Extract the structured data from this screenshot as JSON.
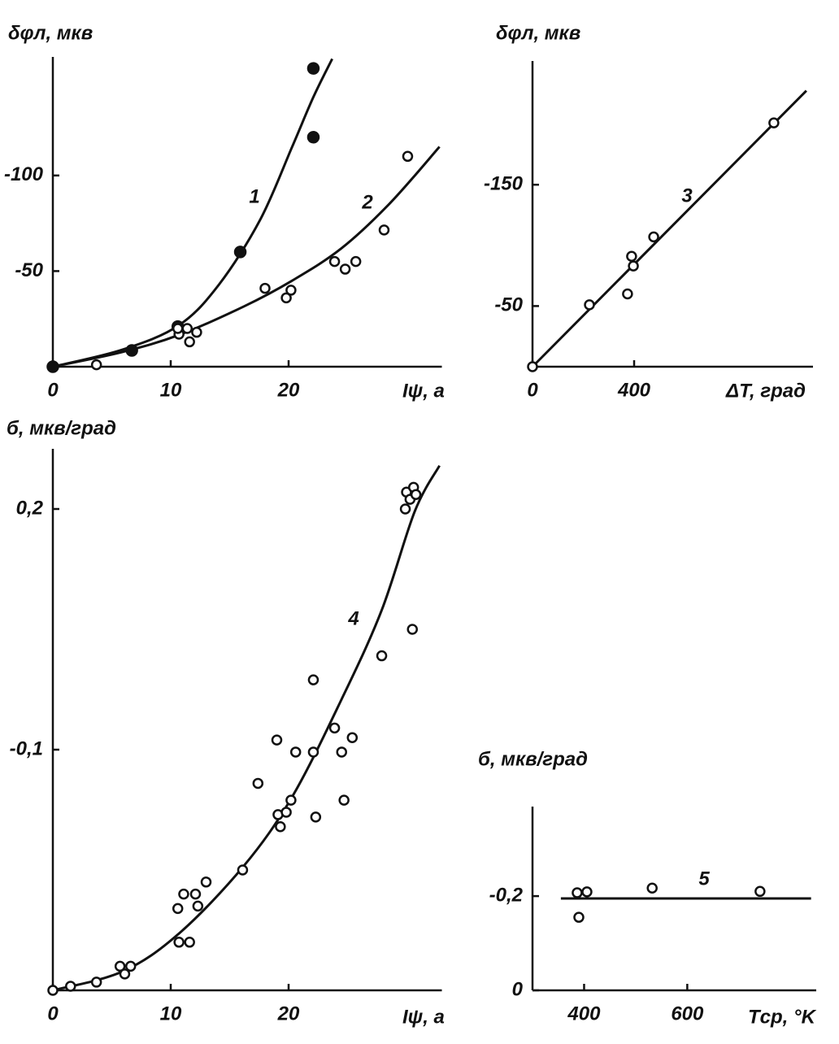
{
  "chart_data": [
    {
      "type": "scatter",
      "ylabel": "δφл, мкв",
      "xlabel": "Iψ, а",
      "xlim": [
        0,
        33
      ],
      "ylim": [
        0,
        -162
      ],
      "xticks": [
        0,
        10,
        20
      ],
      "yticks": [
        -50,
        -100
      ],
      "series": [
        {
          "marker": "filled",
          "x": [
            0,
            6.7,
            10.6,
            15.9,
            22.1,
            22.1
          ],
          "values": [
            0,
            -8.5,
            -21,
            -60,
            -120,
            -156
          ]
        },
        {
          "marker": "open",
          "x": [
            3.7,
            10.7,
            11.4,
            11.6,
            12.2,
            10.6,
            18.0,
            19.8,
            20.2,
            23.9,
            24.8,
            25.7,
            28.1,
            30.1
          ],
          "values": [
            -1,
            -17,
            -20,
            -13,
            -18,
            -20,
            -41,
            -36,
            -40,
            -55,
            -51,
            -55,
            -71.5,
            -110
          ]
        }
      ],
      "fits": [
        {
          "name": "1",
          "x": [
            0,
            5.9,
            10.7,
            14.1,
            17.6,
            20.3,
            22.1,
            23.7
          ],
          "values": [
            0,
            -8.9,
            -21.7,
            -43,
            -77,
            -115,
            -141,
            -161
          ]
        },
        {
          "name": "2",
          "x": [
            0,
            5.9,
            10.7,
            16.2,
            20.3,
            24.5,
            28.6,
            32.8
          ],
          "values": [
            0,
            -7.7,
            -16.6,
            -31.5,
            -45,
            -62,
            -85.5,
            -115
          ]
        }
      ]
    },
    {
      "type": "scatter",
      "ylabel": "δφл, мкв",
      "xlabel": "ΔT, град",
      "xlim": [
        0,
        1104
      ],
      "ylim": [
        0,
        -252
      ],
      "xticks": [
        0,
        400
      ],
      "yticks": [
        -50,
        -150
      ],
      "series": [
        {
          "marker": "open",
          "x": [
            0,
            224,
            374,
            390,
            397,
            477,
            950
          ],
          "values": [
            0,
            -51,
            -60,
            -91,
            -83,
            -107,
            -201
          ]
        }
      ],
      "fits": [
        {
          "name": "3",
          "x": [
            0,
            1078
          ],
          "values": [
            0,
            -227.5
          ]
        }
      ]
    },
    {
      "type": "scatter",
      "ylabel": "б, мкв/град",
      "xlabel": "Iψ, а",
      "xlim": [
        0,
        33
      ],
      "ylim": [
        0,
        0.225
      ],
      "xticks": [
        0,
        10,
        20
      ],
      "yticks": [
        {
          "value": 0.1,
          "label": "-0,1"
        },
        {
          "value": 0.2,
          "label": "0,2"
        }
      ],
      "series": [
        {
          "marker": "open",
          "x": [
            0,
            1.5,
            3.7,
            5.7,
            6.1,
            6.6,
            10.6,
            10.7,
            11.1,
            11.6,
            12.1,
            12.3,
            13.0,
            16.1,
            17.4,
            19.0,
            19.1,
            19.3,
            19.8,
            20.2,
            20.6,
            22.1,
            22.1,
            22.3,
            23.9,
            24.5,
            24.7,
            25.4,
            27.9,
            29.9,
            30.0,
            30.3,
            30.6,
            30.8,
            30.5
          ],
          "values": [
            0,
            0.0017,
            0.0034,
            0.01,
            0.0068,
            0.01,
            0.034,
            0.02,
            0.04,
            0.02,
            0.04,
            0.035,
            0.045,
            0.05,
            0.086,
            0.104,
            0.073,
            0.068,
            0.074,
            0.079,
            0.099,
            0.099,
            0.129,
            0.072,
            0.109,
            0.099,
            0.079,
            0.105,
            0.139,
            0.2,
            0.207,
            0.204,
            0.209,
            0.206,
            0.15
          ]
        }
      ],
      "fits": [
        {
          "name": "4",
          "x": [
            0,
            5.9,
            10.7,
            16.2,
            20.3,
            24.5,
            27.9,
            30.7,
            32.8
          ],
          "values": [
            0,
            0.0078,
            0.0236,
            0.0517,
            0.0804,
            0.121,
            0.158,
            0.199,
            0.218
          ]
        }
      ]
    },
    {
      "type": "scatter",
      "ylabel": "б, мкв/град",
      "xlabel": "Tср, °K",
      "xlim": [
        300,
        850
      ],
      "ylim": [
        0,
        0.39
      ],
      "xticks": [
        400,
        600
      ],
      "yticks": [
        0,
        {
          "value": 0.2,
          "label": "-0,2"
        }
      ],
      "series": [
        {
          "marker": "open",
          "x": [
            386.6,
            405.5,
            389.8,
            532,
            741
          ],
          "values": [
            0.207,
            0.209,
            0.155,
            0.217,
            0.21
          ]
        }
      ],
      "fits": [
        {
          "name": "5",
          "x": [
            355,
            840
          ],
          "values": [
            0.195,
            0.195
          ]
        }
      ]
    }
  ]
}
